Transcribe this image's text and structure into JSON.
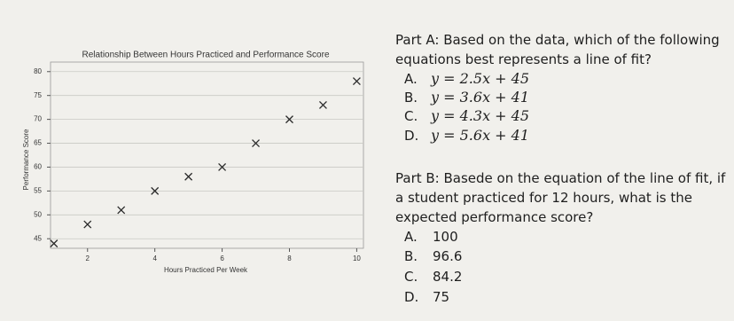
{
  "chart_data": {
    "type": "scatter",
    "title": "Relationship Between Hours Practiced and Performance Score",
    "x_label": "Hours Practiced Per Week",
    "y_label": "Performance Score",
    "x": [
      1,
      2,
      3,
      4,
      5,
      6,
      7,
      8,
      9,
      10
    ],
    "series": [
      {
        "color": "#2a2a2a",
        "values": [
          44,
          48,
          51,
          55,
          58,
          60,
          65,
          70,
          73,
          78
        ]
      }
    ],
    "marker": "x",
    "xlim": [
      0.9,
      10.2
    ],
    "xticks": [
      2,
      4,
      6,
      8,
      10
    ],
    "ylim": [
      43,
      82
    ],
    "yticks": [
      45,
      50,
      55,
      60,
      65,
      70,
      75,
      80
    ],
    "grid": true
  },
  "part_a": {
    "prompt_lines": [
      "Part A: Based on the data, which of the following",
      "equations best represents a line of fit?"
    ],
    "options": [
      {
        "letter": "A.",
        "text": "y = 2.5x + 45"
      },
      {
        "letter": "B.",
        "text": "y = 3.6x + 41"
      },
      {
        "letter": "C.",
        "text": "y = 4.3x + 45"
      },
      {
        "letter": "D.",
        "text": "y = 5.6x + 41"
      }
    ]
  },
  "part_b": {
    "prompt_lines": [
      "Part B: Basede on the equation of the line of fit, if",
      "a student practiced for 12 hours, what is the",
      "expected performance score?"
    ],
    "options": [
      {
        "letter": "A.",
        "text": "100"
      },
      {
        "letter": "B.",
        "text": "96.6"
      },
      {
        "letter": "C.",
        "text": "84.2"
      },
      {
        "letter": "D.",
        "text": "75"
      }
    ]
  }
}
